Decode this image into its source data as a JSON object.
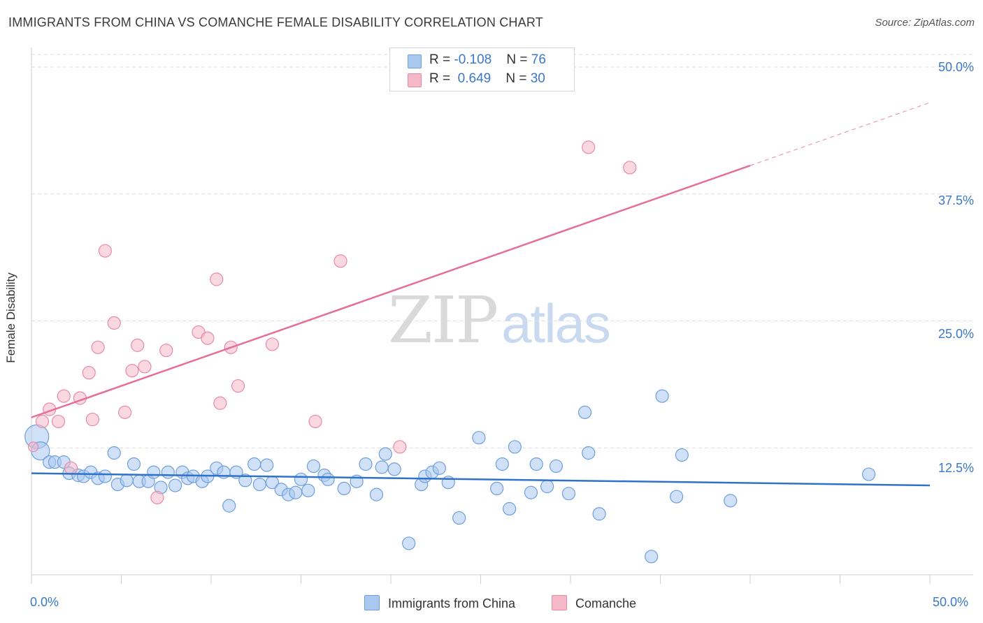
{
  "title": "IMMIGRANTS FROM CHINA VS COMANCHE FEMALE DISABILITY CORRELATION CHART",
  "source": "Source: ZipAtlas.com",
  "watermark": {
    "zip": "ZIP",
    "atlas": "atlas"
  },
  "legend_top": {
    "rows": [
      {
        "r_label": "R = ",
        "r_value": "-0.108",
        "n_label": "N = ",
        "n_value": "76",
        "color": "#a9c8f0"
      },
      {
        "r_label": "R = ",
        "r_value": " 0.649",
        "n_label": "N = ",
        "n_value": "30",
        "color": "#f5b8c9"
      }
    ]
  },
  "legend_bottom": [
    {
      "label": "Immigrants from China",
      "color": "#a9c8f0"
    },
    {
      "label": "Comanche",
      "color": "#f5b8c9"
    }
  ],
  "colors": {
    "blue_fill": "#a9c8f0",
    "blue_stroke": "#6d9fdc",
    "blue_line": "#2f72c9",
    "pink_fill": "#f5b8c9",
    "pink_stroke": "#e88aa6",
    "pink_line": "#e46f98",
    "grid": "#dddddd",
    "axis_text": "#3a78c9"
  },
  "chart_data": {
    "type": "scatter",
    "title": "IMMIGRANTS FROM CHINA VS COMANCHE FEMALE DISABILITY CORRELATION CHART",
    "xlabel": "",
    "ylabel": "Female Disability",
    "xlim": [
      0,
      50
    ],
    "ylim": [
      0,
      50
    ],
    "x_tick_labels": [
      "0.0%",
      "50.0%"
    ],
    "y_tick_labels": [
      "12.5%",
      "25.0%",
      "37.5%",
      "50.0%"
    ],
    "y_ticks": [
      12.5,
      25.0,
      37.5,
      50.0
    ],
    "grid": true,
    "series": [
      {
        "name": "Immigrants from China",
        "r": -0.108,
        "n": 76,
        "trend": {
          "x0": 0.0,
          "y0": 10.0,
          "x1": 50.0,
          "y1": 8.8,
          "dashed_from": null
        },
        "points": [
          [
            0.3,
            13.6
          ],
          [
            0.5,
            12.2
          ],
          [
            1.0,
            11.1
          ],
          [
            1.3,
            11.1
          ],
          [
            1.8,
            11.1
          ],
          [
            2.1,
            10.0
          ],
          [
            2.6,
            9.8
          ],
          [
            2.9,
            9.7
          ],
          [
            3.3,
            10.1
          ],
          [
            3.7,
            9.5
          ],
          [
            4.1,
            9.7
          ],
          [
            4.6,
            12.0
          ],
          [
            4.8,
            8.9
          ],
          [
            5.3,
            9.3
          ],
          [
            5.7,
            10.9
          ],
          [
            6.0,
            9.2
          ],
          [
            6.5,
            9.2
          ],
          [
            6.8,
            10.1
          ],
          [
            7.2,
            8.6
          ],
          [
            7.6,
            10.1
          ],
          [
            8.0,
            8.8
          ],
          [
            8.4,
            10.1
          ],
          [
            8.7,
            9.5
          ],
          [
            9.0,
            9.7
          ],
          [
            9.5,
            9.2
          ],
          [
            9.8,
            9.7
          ],
          [
            10.3,
            10.5
          ],
          [
            10.7,
            10.1
          ],
          [
            11.0,
            6.8
          ],
          [
            11.4,
            10.1
          ],
          [
            11.9,
            9.3
          ],
          [
            12.4,
            10.9
          ],
          [
            12.7,
            8.9
          ],
          [
            13.1,
            10.8
          ],
          [
            13.4,
            9.1
          ],
          [
            13.9,
            8.4
          ],
          [
            14.3,
            7.9
          ],
          [
            14.7,
            8.1
          ],
          [
            15.0,
            9.4
          ],
          [
            15.4,
            8.3
          ],
          [
            15.7,
            10.7
          ],
          [
            16.3,
            9.8
          ],
          [
            16.5,
            9.4
          ],
          [
            17.4,
            8.5
          ],
          [
            18.1,
            9.2
          ],
          [
            18.6,
            10.9
          ],
          [
            19.2,
            7.9
          ],
          [
            19.5,
            10.6
          ],
          [
            19.7,
            11.9
          ],
          [
            20.2,
            10.4
          ],
          [
            21.0,
            3.1
          ],
          [
            21.7,
            8.9
          ],
          [
            21.9,
            9.7
          ],
          [
            22.3,
            10.1
          ],
          [
            22.7,
            10.5
          ],
          [
            23.2,
            9.1
          ],
          [
            23.8,
            5.6
          ],
          [
            24.9,
            13.5
          ],
          [
            25.9,
            8.5
          ],
          [
            26.2,
            10.9
          ],
          [
            26.6,
            6.5
          ],
          [
            26.9,
            12.6
          ],
          [
            27.8,
            8.1
          ],
          [
            28.1,
            10.9
          ],
          [
            28.7,
            8.7
          ],
          [
            29.2,
            10.7
          ],
          [
            29.9,
            8.0
          ],
          [
            30.8,
            16.0
          ],
          [
            31.0,
            12.0
          ],
          [
            31.6,
            6.0
          ],
          [
            34.5,
            1.8
          ],
          [
            35.1,
            17.6
          ],
          [
            35.9,
            7.7
          ],
          [
            36.2,
            11.8
          ],
          [
            38.9,
            7.3
          ],
          [
            46.6,
            9.9
          ]
        ]
      },
      {
        "name": "Comanche",
        "r": 0.649,
        "n": 30,
        "trend": {
          "x0": 0.0,
          "y0": 15.5,
          "x1": 40.0,
          "y1": 40.3,
          "dashed_from": 40.0,
          "x_end": 50.0,
          "y_end": 46.5
        },
        "points": [
          [
            0.1,
            12.6
          ],
          [
            0.6,
            15.1
          ],
          [
            1.0,
            16.3
          ],
          [
            1.5,
            15.1
          ],
          [
            1.8,
            17.6
          ],
          [
            2.2,
            10.5
          ],
          [
            2.7,
            17.4
          ],
          [
            3.2,
            19.9
          ],
          [
            3.4,
            15.3
          ],
          [
            3.7,
            22.4
          ],
          [
            4.1,
            31.9
          ],
          [
            4.6,
            24.8
          ],
          [
            5.2,
            16.0
          ],
          [
            5.6,
            20.1
          ],
          [
            5.9,
            22.6
          ],
          [
            6.3,
            20.5
          ],
          [
            7.0,
            7.6
          ],
          [
            7.5,
            22.1
          ],
          [
            9.3,
            23.9
          ],
          [
            9.8,
            23.3
          ],
          [
            10.3,
            29.1
          ],
          [
            10.5,
            16.9
          ],
          [
            11.1,
            22.4
          ],
          [
            11.5,
            18.6
          ],
          [
            13.4,
            22.7
          ],
          [
            15.8,
            15.1
          ],
          [
            17.2,
            30.9
          ],
          [
            20.5,
            12.6
          ],
          [
            31.0,
            42.1
          ],
          [
            33.3,
            40.1
          ]
        ]
      }
    ]
  }
}
